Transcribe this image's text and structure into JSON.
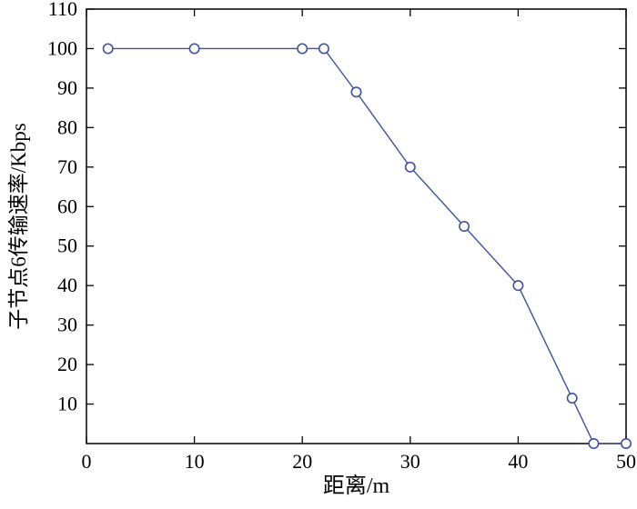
{
  "figure": {
    "background": "#ffffff",
    "axis_color": "#000000",
    "line_color": "#3f51a0",
    "marker_fill": "#ffffff"
  },
  "chart_data": {
    "type": "line",
    "title": "",
    "xlabel": "距离/m",
    "ylabel": "子节点6传输速率/Kbps",
    "xlim": [
      0,
      50
    ],
    "ylim": [
      0,
      110
    ],
    "xticks": [
      0,
      10,
      20,
      30,
      40,
      50
    ],
    "yticks": [
      10,
      20,
      30,
      40,
      50,
      60,
      70,
      80,
      90,
      100,
      110
    ],
    "grid": false,
    "legend": "none",
    "marker": "circle",
    "series": [
      {
        "name": "child-node-6-rate",
        "x": [
          2,
          10,
          20,
          22,
          25,
          30,
          35,
          40,
          45,
          47,
          50
        ],
        "y": [
          100,
          100,
          100,
          100,
          89,
          70,
          55,
          40,
          11.5,
          0,
          0
        ]
      }
    ]
  }
}
